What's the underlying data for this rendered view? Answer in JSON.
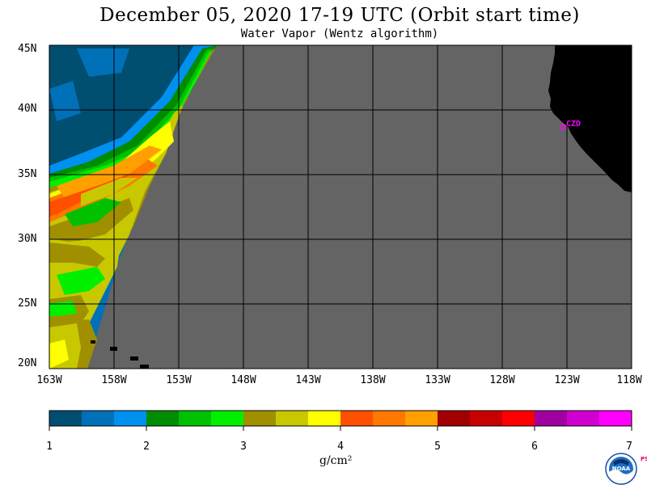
{
  "header": {
    "title": "December 05, 2020  17-19 UTC  (Orbit start time)",
    "subtitle": "Water Vapor (Wentz algorithm)"
  },
  "map": {
    "lat_labels": [
      "45N",
      "40N",
      "35N",
      "30N",
      "25N",
      "20N"
    ],
    "lon_labels": [
      "163W",
      "158W",
      "153W",
      "148W",
      "143W",
      "138W",
      "133W",
      "128W",
      "123W",
      "118W"
    ],
    "station_label": "CZD",
    "colors": {
      "no_data": "#646464",
      "land": "#000000",
      "grid": "#000000",
      "station": "#ff00ff"
    }
  },
  "colorbar": {
    "colors": [
      "#004e70",
      "#0070b8",
      "#0090f0",
      "#008c00",
      "#00c000",
      "#00f000",
      "#a09000",
      "#c8c800",
      "#ffff00",
      "#ff5000",
      "#ff7800",
      "#ffa000",
      "#a00000",
      "#c80000",
      "#ff0000",
      "#a000a0",
      "#d000d0",
      "#ff00ff"
    ],
    "tick_labels": [
      "1",
      "2",
      "3",
      "4",
      "5",
      "6",
      "7"
    ],
    "unit": "g/cm²"
  },
  "logo": {
    "text": "NOAA",
    "side_text": "PSL"
  }
}
